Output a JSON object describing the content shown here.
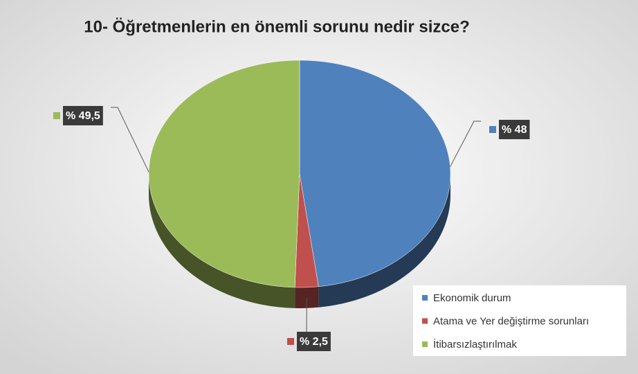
{
  "chart_data": {
    "type": "pie",
    "title": "10- Öğretmenlerin en önemli sorunu nedir sizce?",
    "categories": [
      "Ekonomik durum",
      "Atama ve Yer değiştirme sorunları",
      "İtibarsızlaştırılmak"
    ],
    "values": [
      48,
      2.5,
      49.5
    ],
    "value_labels": [
      "% 48",
      "% 2,5",
      "% 49,5"
    ],
    "colors": [
      "#4f81bd",
      "#c0504d",
      "#9bbb59"
    ],
    "legend": "bottom-right"
  }
}
